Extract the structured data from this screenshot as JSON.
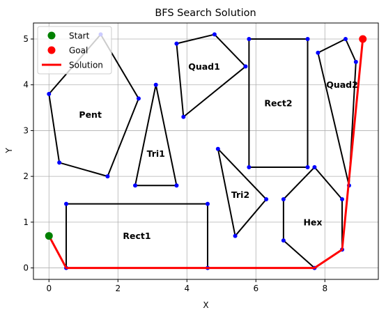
{
  "chart_data": {
    "type": "line",
    "title": "BFS Search Solution",
    "xlabel": "X",
    "ylabel": "Y",
    "xlim": [
      -0.45,
      9.55
    ],
    "ylim": [
      -0.25,
      5.35
    ],
    "xticks": [
      0,
      2,
      4,
      6,
      8
    ],
    "yticks": [
      0,
      1,
      2,
      3,
      4,
      5
    ],
    "grid": true,
    "legend": {
      "placement": "top-left",
      "entries": [
        {
          "label": "Start",
          "kind": "marker",
          "color": "#008000"
        },
        {
          "label": "Goal",
          "kind": "marker",
          "color": "#ff0000"
        },
        {
          "label": "Solution",
          "kind": "line",
          "color": "#ff0000"
        }
      ]
    },
    "obstacles": [
      {
        "name": "Pent",
        "label_at": [
          1.2,
          3.35
        ],
        "vertices": [
          [
            0,
            3.8
          ],
          [
            1.5,
            5.1
          ],
          [
            2.6,
            3.7
          ],
          [
            1.7,
            2.0
          ],
          [
            0.3,
            2.3
          ]
        ]
      },
      {
        "name": "Tri1",
        "label_at": [
          3.1,
          2.5
        ],
        "vertices": [
          [
            3.1,
            4.0
          ],
          [
            3.7,
            1.8
          ],
          [
            2.5,
            1.8
          ]
        ]
      },
      {
        "name": "Quad1",
        "label_at": [
          4.5,
          4.4
        ],
        "vertices": [
          [
            3.7,
            4.9
          ],
          [
            4.8,
            5.1
          ],
          [
            5.7,
            4.4
          ],
          [
            3.9,
            3.3
          ]
        ]
      },
      {
        "name": "Rect2",
        "label_at": [
          6.65,
          3.6
        ],
        "vertices": [
          [
            5.8,
            5.0
          ],
          [
            7.5,
            5.0
          ],
          [
            7.5,
            2.2
          ],
          [
            5.8,
            2.2
          ]
        ]
      },
      {
        "name": "Quad2",
        "label_at": [
          8.5,
          4.0
        ],
        "vertices": [
          [
            7.8,
            4.7
          ],
          [
            8.6,
            5.0
          ],
          [
            8.9,
            4.5
          ],
          [
            8.7,
            1.8
          ]
        ]
      },
      {
        "name": "Tri2",
        "label_at": [
          5.55,
          1.6
        ],
        "vertices": [
          [
            4.9,
            2.6
          ],
          [
            6.3,
            1.5
          ],
          [
            5.4,
            0.7
          ]
        ]
      },
      {
        "name": "Hex",
        "label_at": [
          7.65,
          1.0
        ],
        "vertices": [
          [
            7.7,
            2.2
          ],
          [
            8.5,
            1.5
          ],
          [
            8.5,
            0.4
          ],
          [
            7.7,
            0.0
          ],
          [
            6.8,
            0.6
          ],
          [
            6.8,
            1.5
          ]
        ]
      },
      {
        "name": "Rect1",
        "label_at": [
          2.55,
          0.7
        ],
        "vertices": [
          [
            0.5,
            1.4
          ],
          [
            4.6,
            1.4
          ],
          [
            4.6,
            0.0
          ],
          [
            0.5,
            0.0
          ]
        ]
      }
    ],
    "start": [
      0,
      0.7
    ],
    "goal": [
      9.1,
      5.0
    ],
    "solution": [
      [
        0,
        0.7
      ],
      [
        0.5,
        0.0
      ],
      [
        4.6,
        0.0
      ],
      [
        7.7,
        0.0
      ],
      [
        8.5,
        0.4
      ],
      [
        9.1,
        5.0
      ]
    ]
  }
}
